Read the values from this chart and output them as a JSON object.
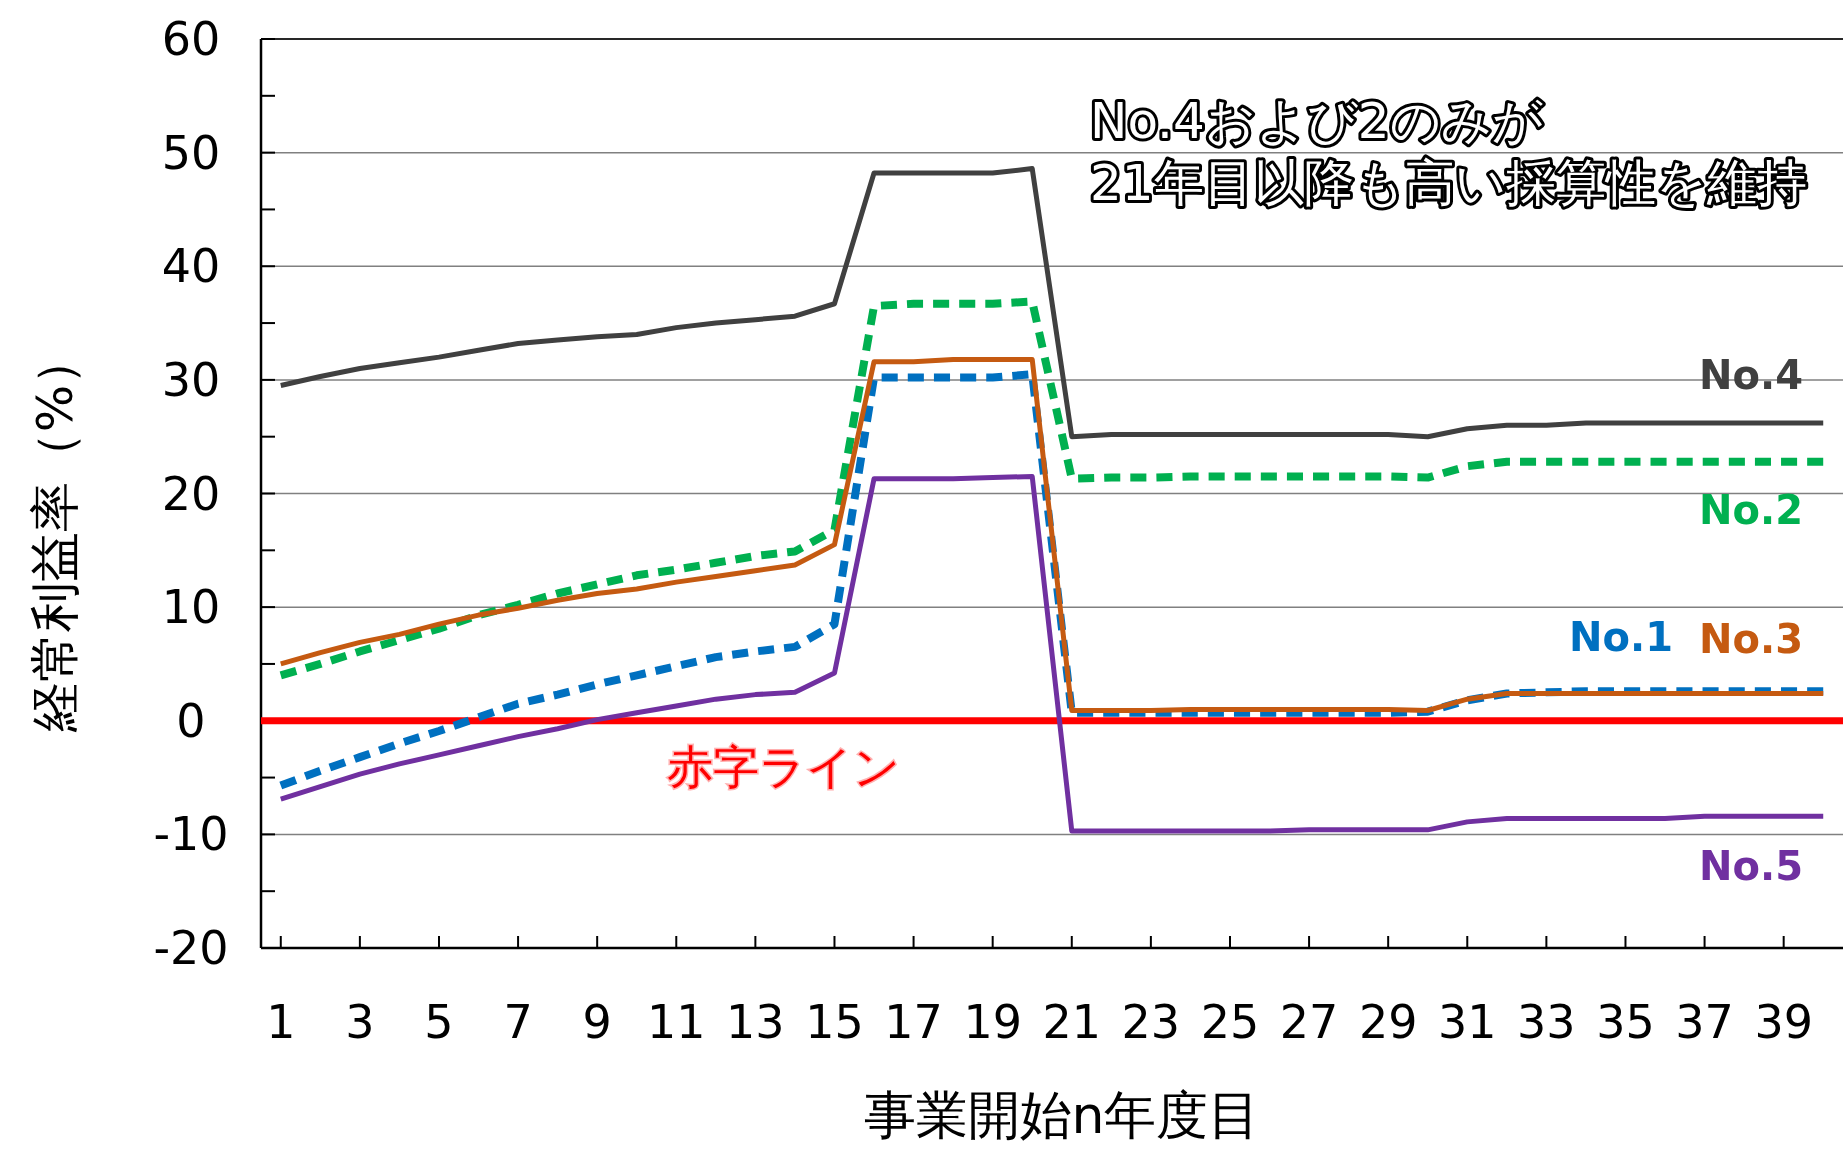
{
  "chart_data": {
    "type": "line",
    "xlabel": "事業開始n年度目",
    "ylabel": "経常利益率（%）",
    "x": [
      1,
      2,
      3,
      4,
      5,
      6,
      7,
      8,
      9,
      10,
      11,
      12,
      13,
      14,
      15,
      16,
      17,
      18,
      19,
      20,
      21,
      22,
      23,
      24,
      25,
      26,
      27,
      28,
      29,
      30,
      31,
      32,
      33,
      34,
      35,
      36,
      37,
      38,
      39,
      40
    ],
    "xlim": [
      0.5,
      40.5
    ],
    "xticks": [
      1,
      3,
      5,
      7,
      9,
      11,
      13,
      15,
      17,
      19,
      21,
      23,
      25,
      27,
      29,
      31,
      33,
      35,
      37,
      39
    ],
    "ylim": [
      -20,
      60
    ],
    "yticks": [
      -20,
      {
        "value": -15,
        "label": null
      },
      -10,
      {
        "value": -5,
        "label": null
      },
      0,
      {
        "value": 5,
        "label": null
      },
      10,
      {
        "value": 15,
        "label": null
      },
      20,
      {
        "value": 25,
        "label": null
      },
      30,
      {
        "value": 35,
        "label": null
      },
      40,
      {
        "value": 45,
        "label": null
      },
      50,
      {
        "value": 55,
        "label": null
      },
      60
    ],
    "grid": "y",
    "marker": "none",
    "series": [
      {
        "name": "No.4",
        "color": "#404040",
        "line_style": "solid",
        "values": [
          29.5,
          30.3,
          31.0,
          31.5,
          32.0,
          32.6,
          33.2,
          33.5,
          33.8,
          34.0,
          34.6,
          35.0,
          35.3,
          35.6,
          36.7,
          48.2,
          48.2,
          48.2,
          48.2,
          48.6,
          25.0,
          25.2,
          25.2,
          25.2,
          25.2,
          25.2,
          25.2,
          25.2,
          25.2,
          25.0,
          25.7,
          26.0,
          26.0,
          26.2,
          26.2,
          26.2,
          26.2,
          26.2,
          26.2,
          26.2
        ]
      },
      {
        "name": "No.2",
        "color": "#00b050",
        "line_style": "dashed",
        "values": [
          4.0,
          5.0,
          6.1,
          7.1,
          8.1,
          9.3,
          10.2,
          11.2,
          12.0,
          12.8,
          13.3,
          13.9,
          14.5,
          14.9,
          16.8,
          36.5,
          36.7,
          36.7,
          36.7,
          36.9,
          21.3,
          21.4,
          21.4,
          21.5,
          21.5,
          21.5,
          21.5,
          21.5,
          21.5,
          21.4,
          22.4,
          22.8,
          22.8,
          22.8,
          22.8,
          22.8,
          22.8,
          22.8,
          22.8,
          22.8
        ]
      },
      {
        "name": "No.1",
        "color": "#0070c0",
        "line_style": "dashed",
        "values": [
          -5.7,
          -4.4,
          -3.2,
          -2.0,
          -0.9,
          0.3,
          1.5,
          2.3,
          3.2,
          4.0,
          4.8,
          5.6,
          6.1,
          6.5,
          8.5,
          30.2,
          30.2,
          30.2,
          30.2,
          30.5,
          0.7,
          0.7,
          0.7,
          0.7,
          0.7,
          0.7,
          0.7,
          0.7,
          0.7,
          0.8,
          1.8,
          2.4,
          2.5,
          2.6,
          2.6,
          2.6,
          2.6,
          2.6,
          2.6,
          2.6
        ]
      },
      {
        "name": "No.3",
        "color": "#c55a11",
        "line_style": "solid",
        "values": [
          5.0,
          6.0,
          6.9,
          7.6,
          8.5,
          9.3,
          9.9,
          10.6,
          11.2,
          11.6,
          12.2,
          12.7,
          13.2,
          13.7,
          15.5,
          31.6,
          31.6,
          31.8,
          31.8,
          31.8,
          0.9,
          0.9,
          0.9,
          1.0,
          1.0,
          1.0,
          1.0,
          1.0,
          1.0,
          0.9,
          1.9,
          2.4,
          2.4,
          2.4,
          2.4,
          2.4,
          2.4,
          2.4,
          2.4,
          2.4
        ]
      },
      {
        "name": "No.5",
        "color": "#7030a0",
        "line_style": "solid",
        "values": [
          -6.9,
          -5.8,
          -4.7,
          -3.8,
          -3.0,
          -2.2,
          -1.4,
          -0.7,
          0.1,
          0.7,
          1.3,
          1.9,
          2.3,
          2.5,
          4.2,
          21.3,
          21.3,
          21.3,
          21.4,
          21.5,
          -9.7,
          -9.7,
          -9.7,
          -9.7,
          -9.7,
          -9.7,
          -9.6,
          -9.6,
          -9.6,
          -9.6,
          -8.9,
          -8.6,
          -8.6,
          -8.6,
          -8.6,
          -8.6,
          -8.4,
          -8.4,
          -8.4,
          -8.4
        ]
      }
    ],
    "ref_lines": [
      {
        "axis": "y",
        "value": 0,
        "label": "赤字ライン",
        "color": "#ff0000"
      }
    ],
    "annotations": [
      "No.4および2のみが",
      "21年目以降も高い採算性を維持"
    ]
  }
}
